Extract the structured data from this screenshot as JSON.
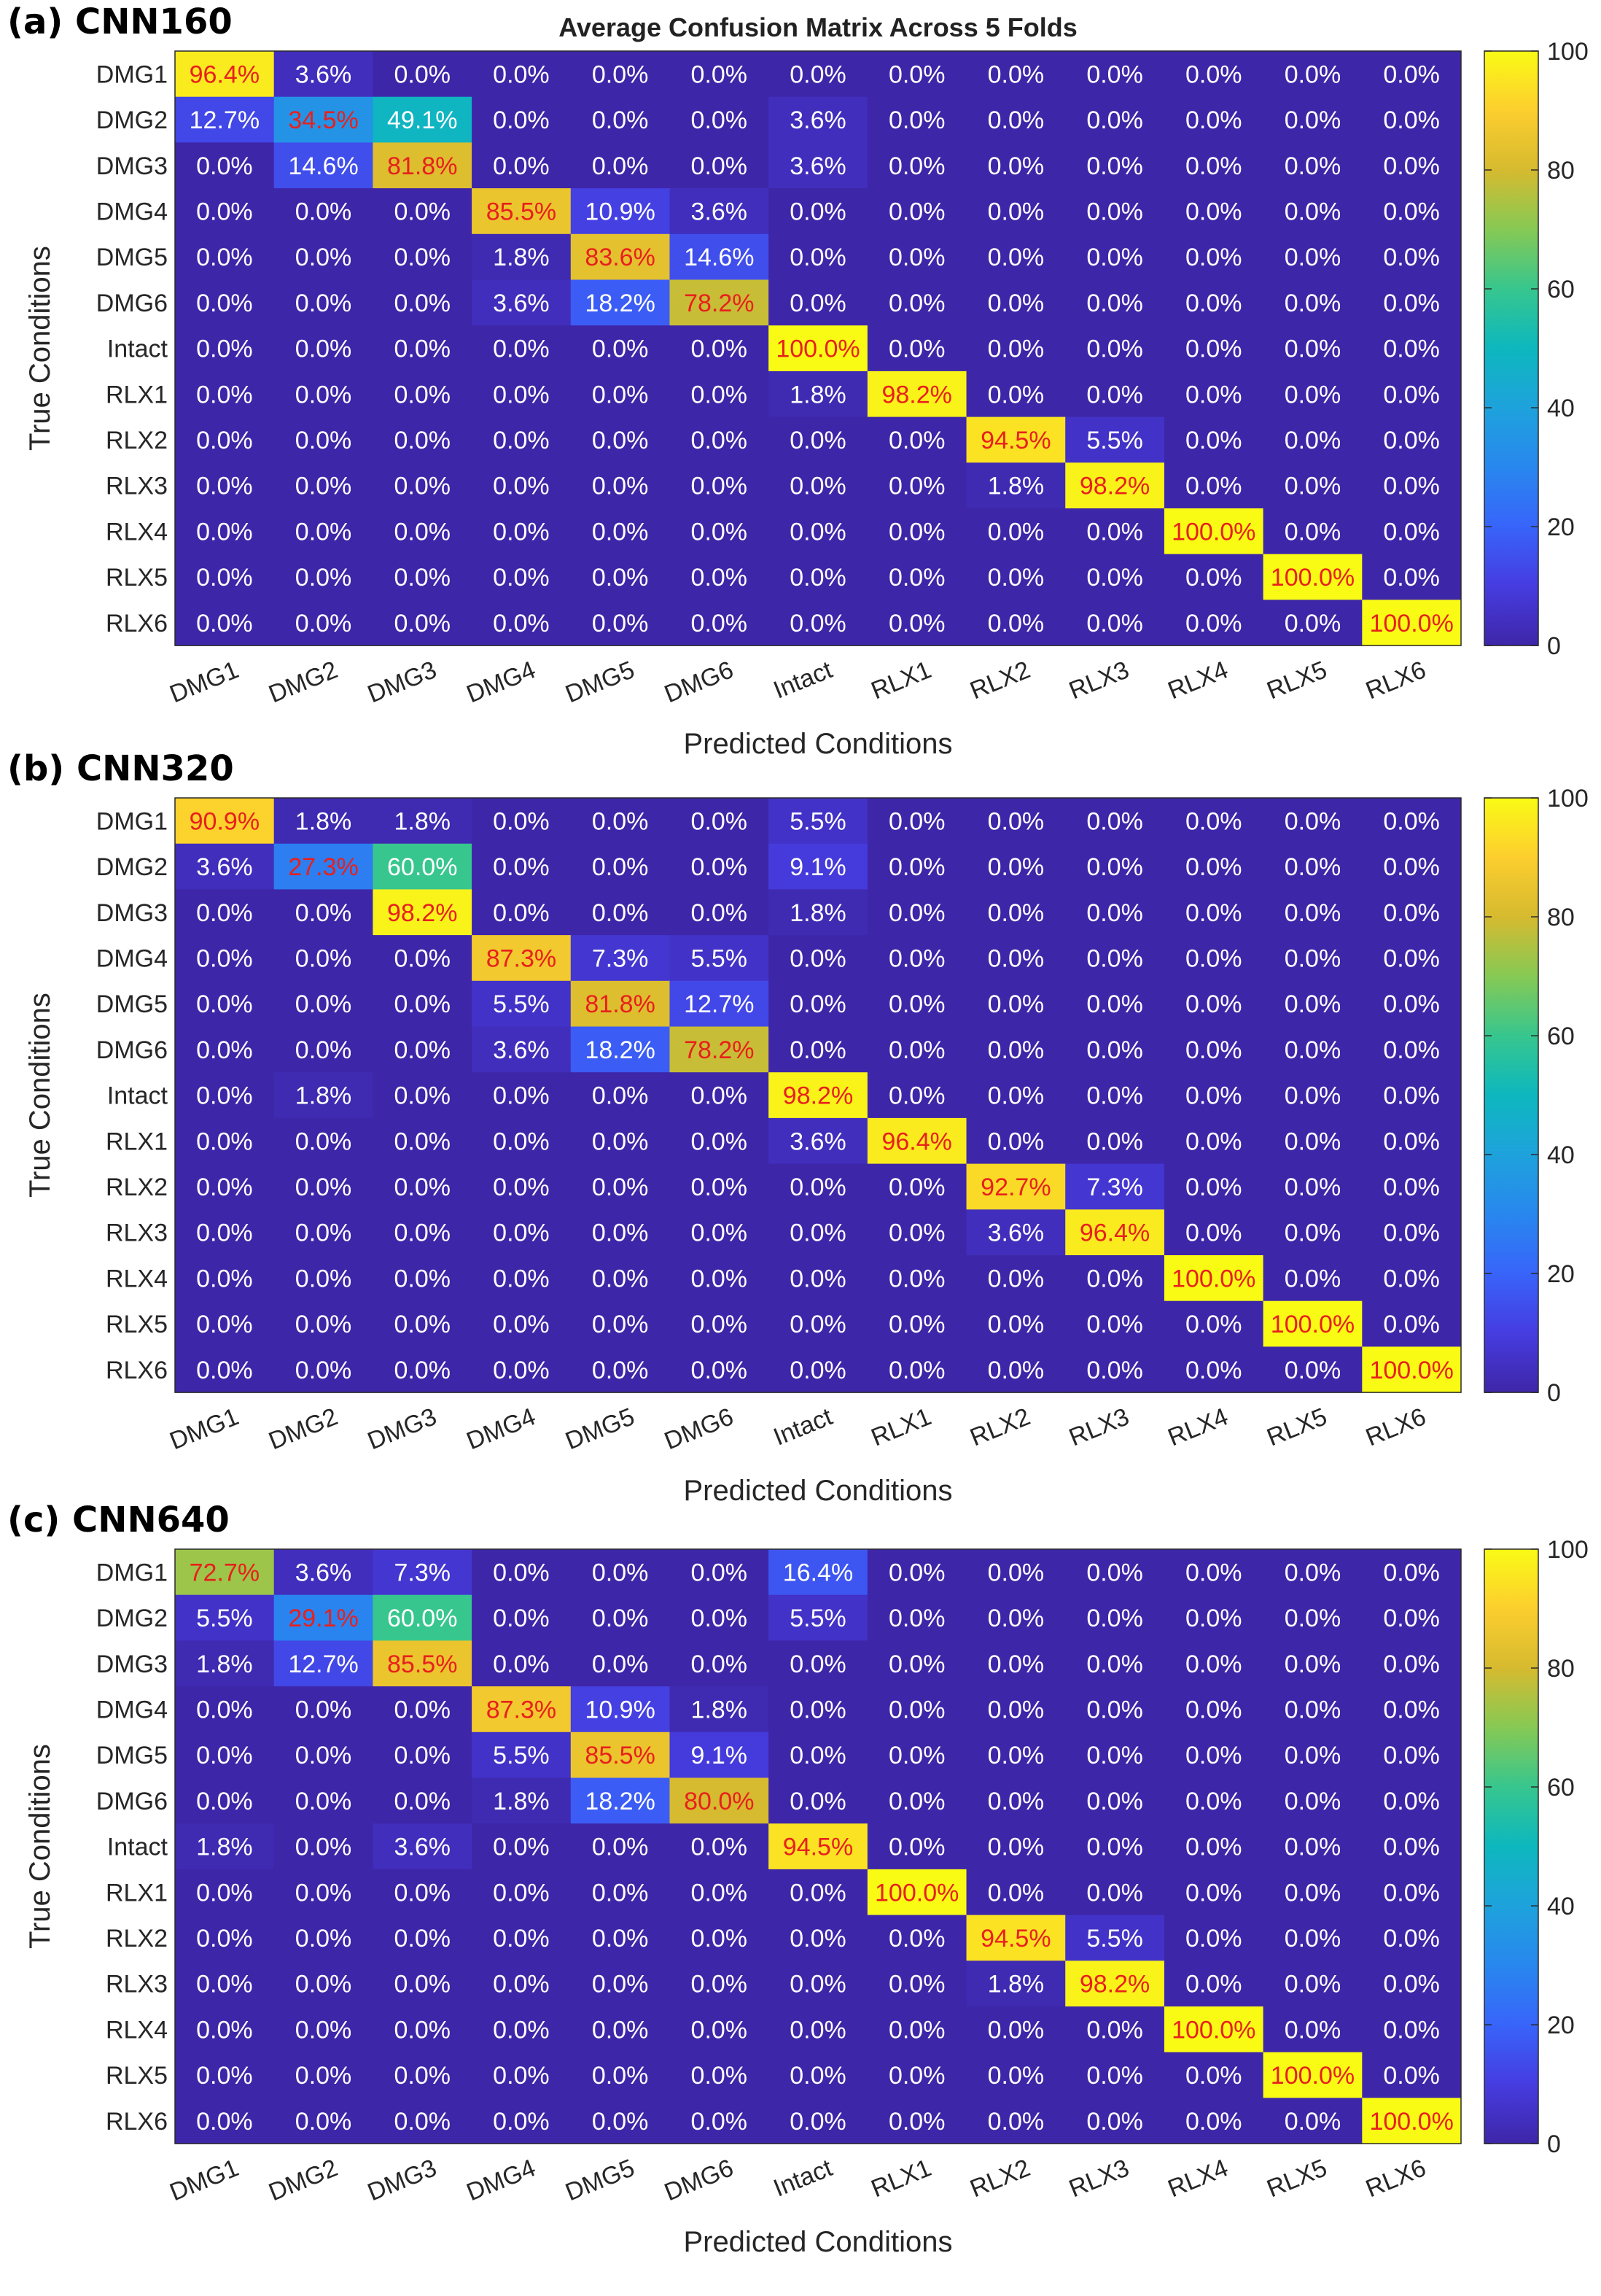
{
  "chart_data": [
    {
      "type": "heatmap",
      "panel_label": "(a) CNN160",
      "title": "Average Confusion Matrix Across 5 Folds",
      "xlabel": "Predicted Conditions",
      "ylabel": "True Conditions",
      "rows": [
        "DMG1",
        "DMG2",
        "DMG3",
        "DMG4",
        "DMG5",
        "DMG6",
        "Intact",
        "RLX1",
        "RLX2",
        "RLX3",
        "RLX4",
        "RLX5",
        "RLX6"
      ],
      "cols": [
        "DMG1",
        "DMG2",
        "DMG3",
        "DMG4",
        "DMG5",
        "DMG6",
        "Intact",
        "RLX1",
        "RLX2",
        "RLX3",
        "RLX4",
        "RLX5",
        "RLX6"
      ],
      "values": [
        [
          96.4,
          3.6,
          0,
          0,
          0,
          0,
          0,
          0,
          0,
          0,
          0,
          0,
          0
        ],
        [
          12.7,
          34.5,
          49.1,
          0,
          0,
          0,
          3.6,
          0,
          0,
          0,
          0,
          0,
          0
        ],
        [
          0,
          14.6,
          81.8,
          0,
          0,
          0,
          3.6,
          0,
          0,
          0,
          0,
          0,
          0
        ],
        [
          0,
          0,
          0,
          85.5,
          10.9,
          3.6,
          0,
          0,
          0,
          0,
          0,
          0,
          0
        ],
        [
          0,
          0,
          0,
          1.8,
          83.6,
          14.6,
          0,
          0,
          0,
          0,
          0,
          0,
          0
        ],
        [
          0,
          0,
          0,
          3.6,
          18.2,
          78.2,
          0,
          0,
          0,
          0,
          0,
          0,
          0
        ],
        [
          0,
          0,
          0,
          0,
          0,
          0,
          100,
          0,
          0,
          0,
          0,
          0,
          0
        ],
        [
          0,
          0,
          0,
          0,
          0,
          0,
          1.8,
          98.2,
          0,
          0,
          0,
          0,
          0
        ],
        [
          0,
          0,
          0,
          0,
          0,
          0,
          0,
          0,
          94.5,
          5.5,
          0,
          0,
          0
        ],
        [
          0,
          0,
          0,
          0,
          0,
          0,
          0,
          0,
          1.8,
          98.2,
          0,
          0,
          0
        ],
        [
          0,
          0,
          0,
          0,
          0,
          0,
          0,
          0,
          0,
          0,
          100,
          0,
          0
        ],
        [
          0,
          0,
          0,
          0,
          0,
          0,
          0,
          0,
          0,
          0,
          0,
          100,
          0
        ],
        [
          0,
          0,
          0,
          0,
          0,
          0,
          0,
          0,
          0,
          0,
          0,
          0,
          100
        ]
      ],
      "colorbar": {
        "min": 0,
        "max": 100,
        "ticks": [
          "0",
          "20",
          "40",
          "60",
          "80",
          "100"
        ]
      }
    },
    {
      "type": "heatmap",
      "panel_label": "(b) CNN320",
      "title": "",
      "xlabel": "Predicted Conditions",
      "ylabel": "True Conditions",
      "rows": [
        "DMG1",
        "DMG2",
        "DMG3",
        "DMG4",
        "DMG5",
        "DMG6",
        "Intact",
        "RLX1",
        "RLX2",
        "RLX3",
        "RLX4",
        "RLX5",
        "RLX6"
      ],
      "cols": [
        "DMG1",
        "DMG2",
        "DMG3",
        "DMG4",
        "DMG5",
        "DMG6",
        "Intact",
        "RLX1",
        "RLX2",
        "RLX3",
        "RLX4",
        "RLX5",
        "RLX6"
      ],
      "values": [
        [
          90.9,
          1.8,
          1.8,
          0,
          0,
          0,
          5.5,
          0,
          0,
          0,
          0,
          0,
          0
        ],
        [
          3.6,
          27.3,
          60,
          0,
          0,
          0,
          9.1,
          0,
          0,
          0,
          0,
          0,
          0
        ],
        [
          0,
          0,
          98.2,
          0,
          0,
          0,
          1.8,
          0,
          0,
          0,
          0,
          0,
          0
        ],
        [
          0,
          0,
          0,
          87.3,
          7.3,
          5.5,
          0,
          0,
          0,
          0,
          0,
          0,
          0
        ],
        [
          0,
          0,
          0,
          5.5,
          81.8,
          12.7,
          0,
          0,
          0,
          0,
          0,
          0,
          0
        ],
        [
          0,
          0,
          0,
          3.6,
          18.2,
          78.2,
          0,
          0,
          0,
          0,
          0,
          0,
          0
        ],
        [
          0,
          1.8,
          0,
          0,
          0,
          0,
          98.2,
          0,
          0,
          0,
          0,
          0,
          0
        ],
        [
          0,
          0,
          0,
          0,
          0,
          0,
          3.6,
          96.4,
          0,
          0,
          0,
          0,
          0
        ],
        [
          0,
          0,
          0,
          0,
          0,
          0,
          0,
          0,
          92.7,
          7.3,
          0,
          0,
          0
        ],
        [
          0,
          0,
          0,
          0,
          0,
          0,
          0,
          0,
          3.6,
          96.4,
          0,
          0,
          0
        ],
        [
          0,
          0,
          0,
          0,
          0,
          0,
          0,
          0,
          0,
          0,
          100,
          0,
          0
        ],
        [
          0,
          0,
          0,
          0,
          0,
          0,
          0,
          0,
          0,
          0,
          0,
          100,
          0
        ],
        [
          0,
          0,
          0,
          0,
          0,
          0,
          0,
          0,
          0,
          0,
          0,
          0,
          100
        ]
      ],
      "colorbar": {
        "min": 0,
        "max": 100,
        "ticks": [
          "0",
          "20",
          "40",
          "60",
          "80",
          "100"
        ]
      }
    },
    {
      "type": "heatmap",
      "panel_label": "(c) CNN640",
      "title": "",
      "xlabel": "Predicted Conditions",
      "ylabel": "True Conditions",
      "rows": [
        "DMG1",
        "DMG2",
        "DMG3",
        "DMG4",
        "DMG5",
        "DMG6",
        "Intact",
        "RLX1",
        "RLX2",
        "RLX3",
        "RLX4",
        "RLX5",
        "RLX6"
      ],
      "cols": [
        "DMG1",
        "DMG2",
        "DMG3",
        "DMG4",
        "DMG5",
        "DMG6",
        "Intact",
        "RLX1",
        "RLX2",
        "RLX3",
        "RLX4",
        "RLX5",
        "RLX6"
      ],
      "values": [
        [
          72.7,
          3.6,
          7.3,
          0,
          0,
          0,
          16.4,
          0,
          0,
          0,
          0,
          0,
          0
        ],
        [
          5.5,
          29.1,
          60,
          0,
          0,
          0,
          5.5,
          0,
          0,
          0,
          0,
          0,
          0
        ],
        [
          1.8,
          12.7,
          85.5,
          0,
          0,
          0,
          0,
          0,
          0,
          0,
          0,
          0,
          0
        ],
        [
          0,
          0,
          0,
          87.3,
          10.9,
          1.8,
          0,
          0,
          0,
          0,
          0,
          0,
          0
        ],
        [
          0,
          0,
          0,
          5.5,
          85.5,
          9.1,
          0,
          0,
          0,
          0,
          0,
          0,
          0
        ],
        [
          0,
          0,
          0,
          1.8,
          18.2,
          80,
          0,
          0,
          0,
          0,
          0,
          0,
          0
        ],
        [
          1.8,
          0,
          3.6,
          0,
          0,
          0,
          94.5,
          0,
          0,
          0,
          0,
          0,
          0
        ],
        [
          0,
          0,
          0,
          0,
          0,
          0,
          0,
          100,
          0,
          0,
          0,
          0,
          0
        ],
        [
          0,
          0,
          0,
          0,
          0,
          0,
          0,
          0,
          94.5,
          5.5,
          0,
          0,
          0
        ],
        [
          0,
          0,
          0,
          0,
          0,
          0,
          0,
          0,
          1.8,
          98.2,
          0,
          0,
          0
        ],
        [
          0,
          0,
          0,
          0,
          0,
          0,
          0,
          0,
          0,
          0,
          100,
          0,
          0
        ],
        [
          0,
          0,
          0,
          0,
          0,
          0,
          0,
          0,
          0,
          0,
          0,
          100,
          0
        ],
        [
          0,
          0,
          0,
          0,
          0,
          0,
          0,
          0,
          0,
          0,
          0,
          0,
          100
        ]
      ],
      "colorbar": {
        "min": 0,
        "max": 100,
        "ticks": [
          "0",
          "20",
          "40",
          "60",
          "80",
          "100"
        ]
      }
    }
  ],
  "colors": {
    "diagonal_text": "#e8201c",
    "offdiag_text": "#ffffff",
    "colormap": "parula"
  }
}
